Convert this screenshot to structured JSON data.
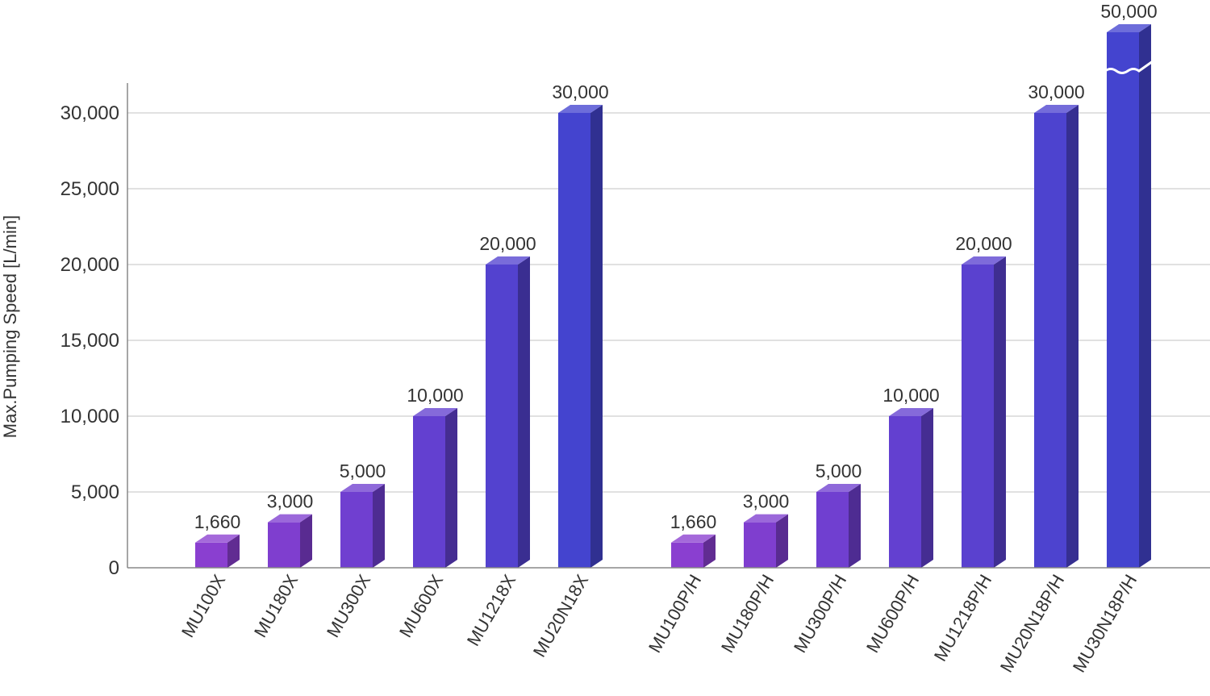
{
  "chart_data": {
    "type": "bar",
    "ylabel": "Max.Pumping Speed [L/min]",
    "ylim": [
      0,
      30000
    ],
    "yticks": [
      0,
      5000,
      10000,
      15000,
      20000,
      25000,
      30000
    ],
    "ytick_labels": [
      "0",
      "5,000",
      "10,000",
      "15,000",
      "20,000",
      "25,000",
      "30,000"
    ],
    "grid": true,
    "axis_break": "MU30N18P/H",
    "groups": [
      {
        "bars": [
          {
            "category": "MU100X",
            "value": 1660,
            "label": "1,660",
            "color": "#8a3fd0"
          },
          {
            "category": "MU180X",
            "value": 3000,
            "label": "3,000",
            "color": "#7f3ecf"
          },
          {
            "category": "MU300X",
            "value": 5000,
            "label": "5,000",
            "color": "#703fd0"
          },
          {
            "category": "MU600X",
            "value": 10000,
            "label": "10,000",
            "color": "#6340d0"
          },
          {
            "category": "MU1218X",
            "value": 20000,
            "label": "20,000",
            "color": "#5342cf"
          },
          {
            "category": "MU20N18X",
            "value": 30000,
            "label": "30,000",
            "color": "#4444cf"
          }
        ]
      },
      {
        "bars": [
          {
            "category": "MU100P/H",
            "value": 1660,
            "label": "1,660",
            "color": "#8a3fd0"
          },
          {
            "category": "MU180P/H",
            "value": 3000,
            "label": "3,000",
            "color": "#7f3ecf"
          },
          {
            "category": "MU300P/H",
            "value": 5000,
            "label": "5,000",
            "color": "#703fd0"
          },
          {
            "category": "MU600P/H",
            "value": 10000,
            "label": "10,000",
            "color": "#6340d0"
          },
          {
            "category": "MU1218P/H",
            "value": 20000,
            "label": "20,000",
            "color": "#5a41cf"
          },
          {
            "category": "MU20N18P/H",
            "value": 30000,
            "label": "30,000",
            "color": "#4d43cf"
          },
          {
            "category": "MU30N18P/H",
            "value": 50000,
            "label": "50,000",
            "color": "#4444cf"
          }
        ]
      }
    ]
  }
}
